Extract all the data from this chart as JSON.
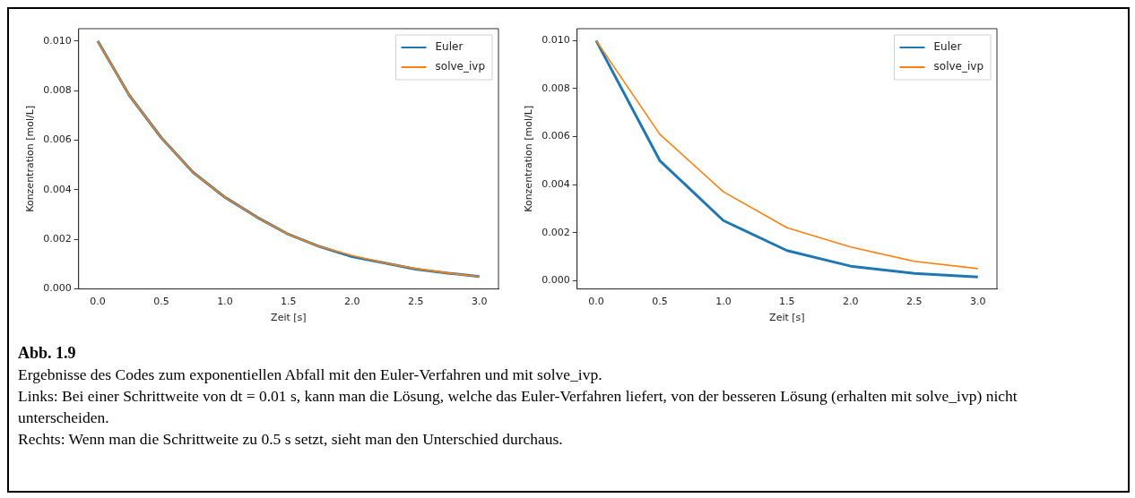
{
  "chart_data": [
    {
      "type": "line",
      "xlabel": "Zeit [s]",
      "ylabel": "Konzentration [mol/L]",
      "legend": "top right",
      "grid": false,
      "x": [
        0,
        0.25,
        0.5,
        0.75,
        1,
        1.25,
        1.5,
        1.75,
        2,
        2.25,
        2.5,
        2.75,
        3
      ],
      "series": [
        {
          "name": "Euler",
          "color": "#1f77b4",
          "values": [
            0.01,
            0.0078,
            0.0061,
            0.0047,
            0.0037,
            0.0029,
            0.0022,
            0.0017,
            0.0013,
            0.00105,
            0.0008,
            0.00064,
            0.0005
          ]
        },
        {
          "name": "solve_ivp",
          "color": "#ff7f0e",
          "values": [
            0.01,
            0.0078,
            0.0061,
            0.0047,
            0.0037,
            0.0029,
            0.0022,
            0.0017,
            0.00135,
            0.00105,
            0.00082,
            0.00064,
            0.0005
          ]
        }
      ],
      "xlim": [
        -0.15,
        3.15
      ],
      "xticks": [
        {
          "value": 0,
          "label": "0.0"
        },
        {
          "value": 0.5,
          "label": "0.5"
        },
        {
          "value": 1,
          "label": "1.0"
        },
        {
          "value": 1.5,
          "label": "1.5"
        },
        {
          "value": 2,
          "label": "2.0"
        },
        {
          "value": 2.5,
          "label": "2.5"
        },
        {
          "value": 3,
          "label": "3.0"
        }
      ],
      "ylim": [
        0,
        0.0105
      ],
      "yticks": [
        {
          "value": 0,
          "label": "0.000"
        },
        {
          "value": 0.002,
          "label": "0.002"
        },
        {
          "value": 0.004,
          "label": "0.004"
        },
        {
          "value": 0.006,
          "label": "0.006"
        },
        {
          "value": 0.008,
          "label": "0.008"
        },
        {
          "value": 0.01,
          "label": "0.010"
        }
      ],
      "annotations": [
        "Abb. 1.9",
        "Ergebnisse des Codes zum exponentiellen Abfall mit den Euler-Verfahren und mit solve_ivp.",
        "Links: Bei einer Schrittweite von dt = 0.01 s, kann man die Lösung, welche das Euler-Verfahren liefert, von der besseren Lösung (erhalten mit solve_ivp) nicht unterscheiden.",
        "Rechts: Wenn man die Schrittweite zu 0.5 s setzt, sieht man den Unterschied durchaus."
      ]
    },
    {
      "type": "line",
      "xlabel": "Zeit [s]",
      "ylabel": "Konzentration [mol/L]",
      "legend": "top right",
      "grid": false,
      "x": [
        0,
        0.5,
        1,
        1.5,
        2,
        2.5,
        3
      ],
      "series": [
        {
          "name": "Euler",
          "color": "#1f77b4",
          "values": [
            0.01,
            0.005,
            0.0025,
            0.00125,
            0.0006,
            0.0003,
            0.00015
          ]
        },
        {
          "name": "solve_ivp",
          "color": "#ff7f0e",
          "values": [
            0.01,
            0.0061,
            0.0037,
            0.0022,
            0.0014,
            0.0008,
            0.0005
          ]
        }
      ],
      "xlim": [
        -0.15,
        3.15
      ],
      "xticks": [
        {
          "value": 0,
          "label": "0.0"
        },
        {
          "value": 0.5,
          "label": "0.5"
        },
        {
          "value": 1,
          "label": "1.0"
        },
        {
          "value": 1.5,
          "label": "1.5"
        },
        {
          "value": 2,
          "label": "2.0"
        },
        {
          "value": 2.5,
          "label": "2.5"
        },
        {
          "value": 3,
          "label": "3.0"
        }
      ],
      "ylim": [
        -0.00035,
        0.0105
      ],
      "yticks": [
        {
          "value": 0,
          "label": "0.000"
        },
        {
          "value": 0.002,
          "label": "0.002"
        },
        {
          "value": 0.004,
          "label": "0.004"
        },
        {
          "value": 0.006,
          "label": "0.006"
        },
        {
          "value": 0.008,
          "label": "0.008"
        },
        {
          "value": 0.01,
          "label": "0.010"
        }
      ]
    }
  ]
}
